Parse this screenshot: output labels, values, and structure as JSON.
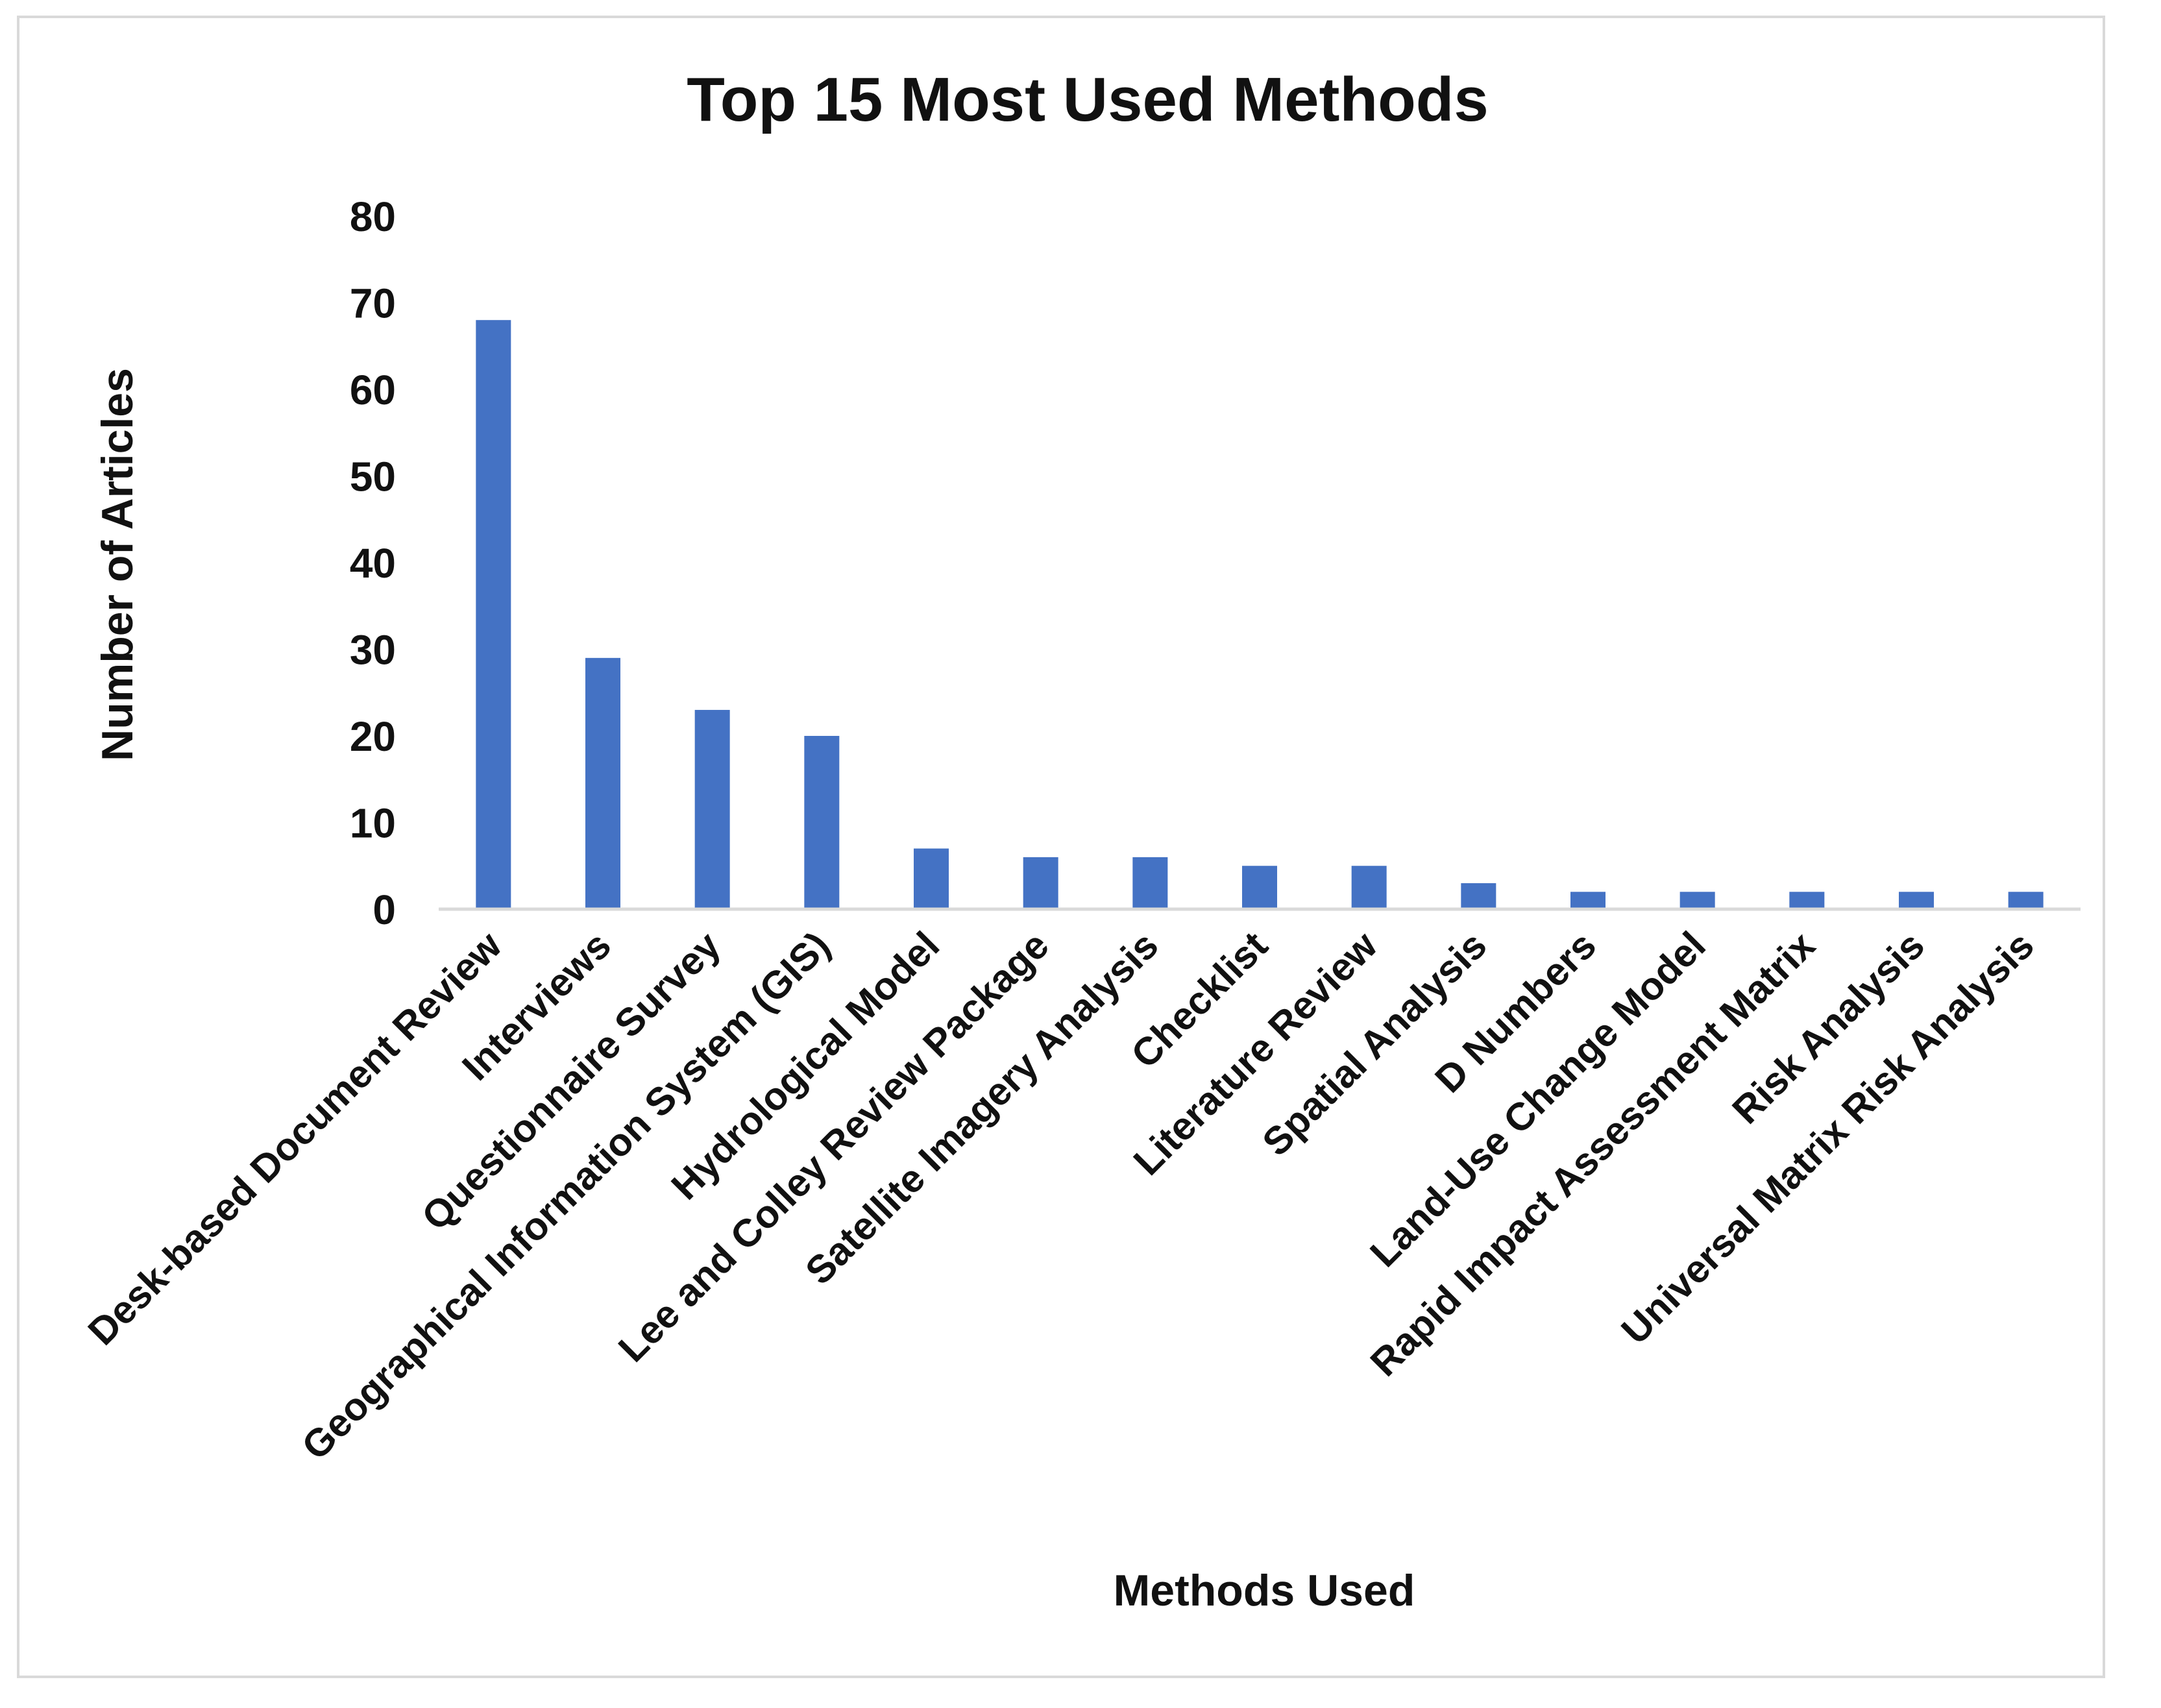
{
  "chart_data": {
    "type": "bar",
    "title": "Top 15 Most Used Methods",
    "xlabel": "Methods Used",
    "ylabel": "Number of Articles",
    "ylim": [
      0,
      80
    ],
    "yticks": [
      0,
      10,
      20,
      30,
      40,
      50,
      60,
      70,
      80
    ],
    "grid": false,
    "legend": "none",
    "bar_color": "#4472C4",
    "axis_color": "#d9d9d9",
    "categories": [
      "Desk-based Document Review",
      "Interviews",
      "Questionnaire Survey",
      "Geographical Information System (GIS)",
      "Hydrological Model",
      "Lee and Colley Review Package",
      "Satellite Imagery Analysis",
      "Checklist",
      "Literature Review",
      "Spatial Analysis",
      "D Numbers",
      "Land-Use Change Model",
      "Rapid Impact Assessment Matrix",
      "Risk Analysis",
      "Universal Matrix Risk Analysis"
    ],
    "values": [
      68,
      29,
      23,
      20,
      7,
      6,
      6,
      5,
      5,
      3,
      2,
      2,
      2,
      2,
      2
    ]
  }
}
